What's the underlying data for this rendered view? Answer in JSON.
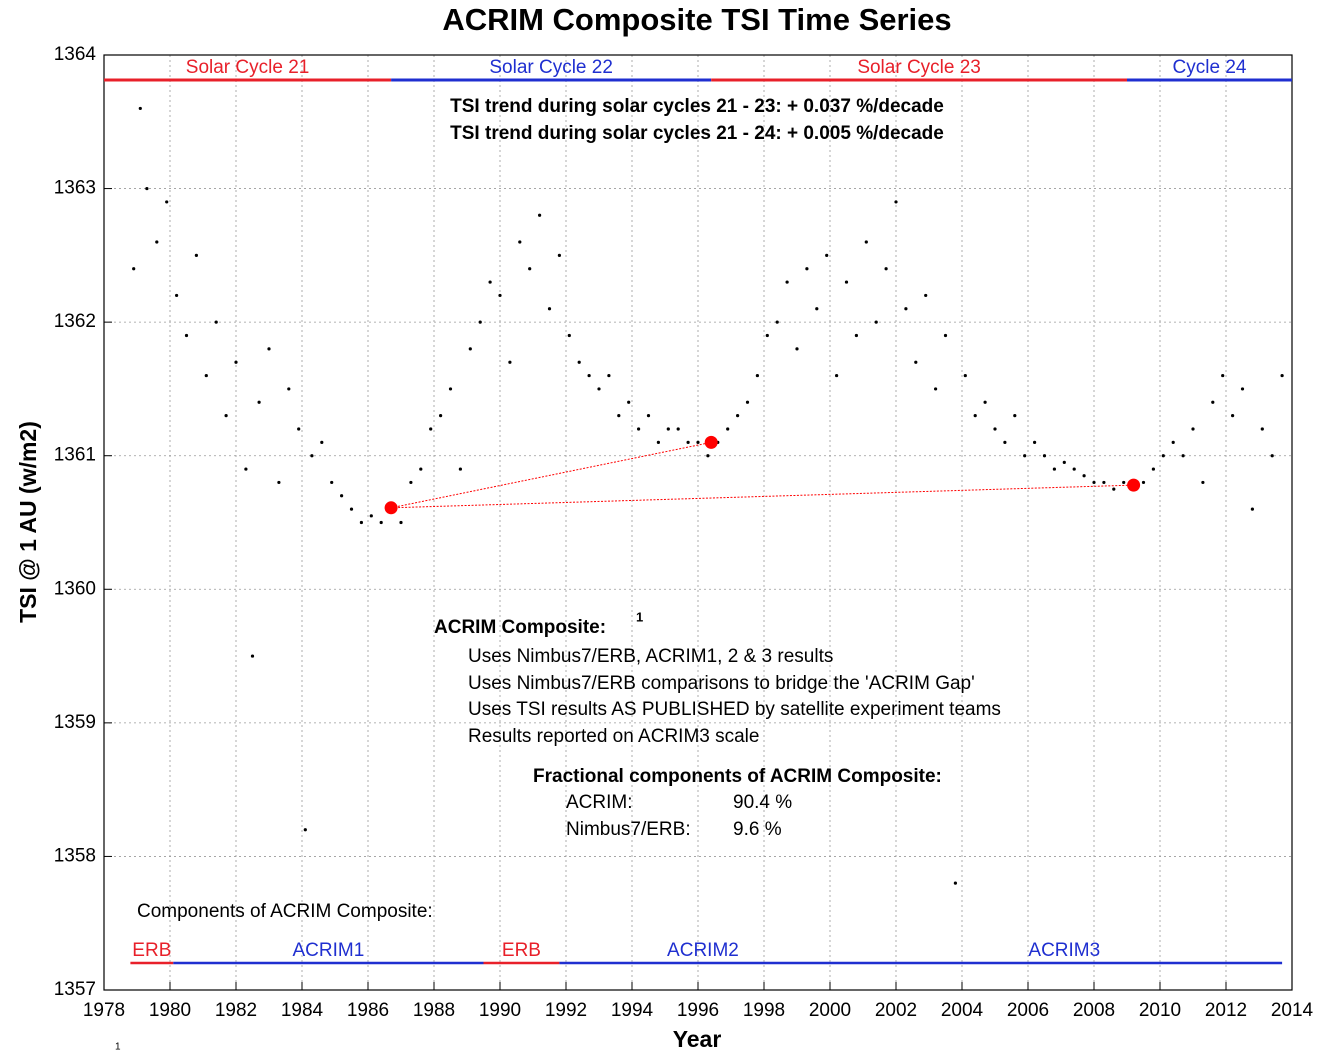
{
  "chart_data": {
    "type": "scatter",
    "title": "ACRIM Composite TSI Time Series",
    "xlabel": "Year",
    "ylabel": "TSI @ 1 AU (w/m2)",
    "xlim": [
      1978,
      2014
    ],
    "xticks": [
      1978,
      1980,
      1982,
      1984,
      1986,
      1988,
      1990,
      1992,
      1994,
      1996,
      1998,
      2000,
      2002,
      2004,
      2006,
      2008,
      2010,
      2012,
      2014
    ],
    "ylim": [
      1357,
      1364
    ],
    "yticks": [
      1357,
      1358,
      1359,
      1360,
      1361,
      1362,
      1363,
      1364
    ],
    "grid": true,
    "x": [
      1978.9,
      1979.1,
      1979.3,
      1979.6,
      1979.9,
      1980.2,
      1980.5,
      1980.8,
      1981.1,
      1981.4,
      1981.7,
      1982.0,
      1982.3,
      1982.5,
      1982.7,
      1983.0,
      1983.3,
      1983.6,
      1983.9,
      1984.1,
      1984.3,
      1984.6,
      1984.9,
      1985.2,
      1985.5,
      1985.8,
      1986.1,
      1986.4,
      1986.7,
      1987.0,
      1987.3,
      1987.6,
      1987.9,
      1988.2,
      1988.5,
      1988.8,
      1989.1,
      1989.4,
      1989.7,
      1990.0,
      1990.3,
      1990.6,
      1990.9,
      1991.2,
      1991.5,
      1991.8,
      1992.1,
      1992.4,
      1992.7,
      1993.0,
      1993.3,
      1993.6,
      1993.9,
      1994.2,
      1994.5,
      1994.8,
      1995.1,
      1995.4,
      1995.7,
      1996.0,
      1996.3,
      1996.6,
      1996.9,
      1997.2,
      1997.5,
      1997.8,
      1998.1,
      1998.4,
      1998.7,
      1999.0,
      1999.3,
      1999.6,
      1999.9,
      2000.2,
      2000.5,
      2000.8,
      2001.1,
      2001.4,
      2001.7,
      2002.0,
      2002.3,
      2002.6,
      2002.9,
      2003.2,
      2003.5,
      2003.8,
      2004.1,
      2004.4,
      2004.7,
      2005.0,
      2005.3,
      2005.6,
      2005.9,
      2006.2,
      2006.5,
      2006.8,
      2007.1,
      2007.4,
      2007.7,
      2008.0,
      2008.3,
      2008.6,
      2008.9,
      2009.2,
      2009.5,
      2009.8,
      2010.1,
      2010.4,
      2010.7,
      2011.0,
      2011.3,
      2011.6,
      2011.9,
      2012.2,
      2012.5,
      2012.8,
      2013.1,
      2013.4,
      2013.7
    ],
    "series": [
      {
        "color": "#000000",
        "values": [
          1362.4,
          1363.6,
          1363.0,
          1362.6,
          1362.9,
          1362.2,
          1361.9,
          1362.5,
          1361.6,
          1362.0,
          1361.3,
          1361.7,
          1360.9,
          1359.5,
          1361.4,
          1361.8,
          1360.8,
          1361.5,
          1361.2,
          1358.2,
          1361.0,
          1361.1,
          1360.8,
          1360.7,
          1360.6,
          1360.5,
          1360.55,
          1360.5,
          1360.6,
          1360.5,
          1360.8,
          1360.9,
          1361.2,
          1361.3,
          1361.5,
          1360.9,
          1361.8,
          1362.0,
          1362.3,
          1362.2,
          1361.7,
          1362.6,
          1362.4,
          1362.8,
          1362.1,
          1362.5,
          1361.9,
          1361.7,
          1361.6,
          1361.5,
          1361.6,
          1361.3,
          1361.4,
          1361.2,
          1361.3,
          1361.1,
          1361.2,
          1361.2,
          1361.1,
          1361.1,
          1361.0,
          1361.1,
          1361.2,
          1361.3,
          1361.4,
          1361.6,
          1361.9,
          1362.0,
          1362.3,
          1361.8,
          1362.4,
          1362.1,
          1362.5,
          1361.6,
          1362.3,
          1361.9,
          1362.6,
          1362.0,
          1362.4,
          1362.9,
          1362.1,
          1361.7,
          1362.2,
          1361.5,
          1361.9,
          1357.8,
          1361.6,
          1361.3,
          1361.4,
          1361.2,
          1361.1,
          1361.3,
          1361.0,
          1361.1,
          1361.0,
          1360.9,
          1360.95,
          1360.9,
          1360.85,
          1360.8,
          1360.8,
          1360.75,
          1360.8,
          1360.75,
          1360.8,
          1360.9,
          1361.0,
          1361.1,
          1361.0,
          1361.2,
          1360.8,
          1361.4,
          1361.6,
          1361.3,
          1361.5,
          1360.6,
          1361.2,
          1361.0,
          1361.6
        ]
      }
    ],
    "minima": {
      "color": "#ff0000",
      "x": [
        1986.7,
        1996.4,
        2009.2
      ],
      "values": [
        1360.61,
        1361.1,
        1360.78
      ]
    },
    "cycles": [
      {
        "label": "Solar Cycle 21",
        "start": 1978,
        "end": 1986.7,
        "color": "#e8202a"
      },
      {
        "label": "Solar Cycle 22",
        "start": 1986.7,
        "end": 1996.4,
        "color": "#1f2fd0"
      },
      {
        "label": "Solar Cycle 23",
        "start": 1996.4,
        "end": 2009.0,
        "color": "#e8202a"
      },
      {
        "label": "Cycle 24",
        "start": 2009.0,
        "end": 2014,
        "color": "#1f2fd0"
      }
    ],
    "components_title": "Components of ACRIM Composite:",
    "components": [
      {
        "label": "ERB",
        "start": 1978.8,
        "end": 1980.1,
        "color": "#e8202a"
      },
      {
        "label": "ACRIM1",
        "start": 1980.1,
        "end": 1989.5,
        "color": "#1f2fd0"
      },
      {
        "label": "ERB",
        "start": 1989.5,
        "end": 1991.8,
        "color": "#e8202a"
      },
      {
        "label": "ACRIM2",
        "start": 1991.8,
        "end": 2000.5,
        "color": "#1f2fd0"
      },
      {
        "label": "ACRIM3",
        "start": 2000.5,
        "end": 2013.7,
        "color": "#1f2fd0"
      }
    ],
    "trends": [
      "TSI trend during solar cycles 21 - 23: + 0.037 %/decade",
      "TSI trend during solar cycles 21 - 24: + 0.005 %/decade"
    ],
    "composite_heading": "ACRIM Composite:",
    "footnote_mark": "1",
    "composite_notes": [
      "Uses Nimbus7/ERB, ACRIM1, 2 & 3  results",
      "Uses Nimbus7/ERB comparisons to bridge the 'ACRIM Gap'",
      "Uses TSI results AS PUBLISHED by satellite experiment teams",
      "Results reported on ACRIM3 scale"
    ],
    "fraction_heading": "Fractional components of ACRIM Composite:",
    "fractions": [
      {
        "label": "ACRIM:",
        "value": "90.4 %"
      },
      {
        "label": "Nimbus7/ERB:",
        "value": "9.6 %"
      }
    ]
  }
}
